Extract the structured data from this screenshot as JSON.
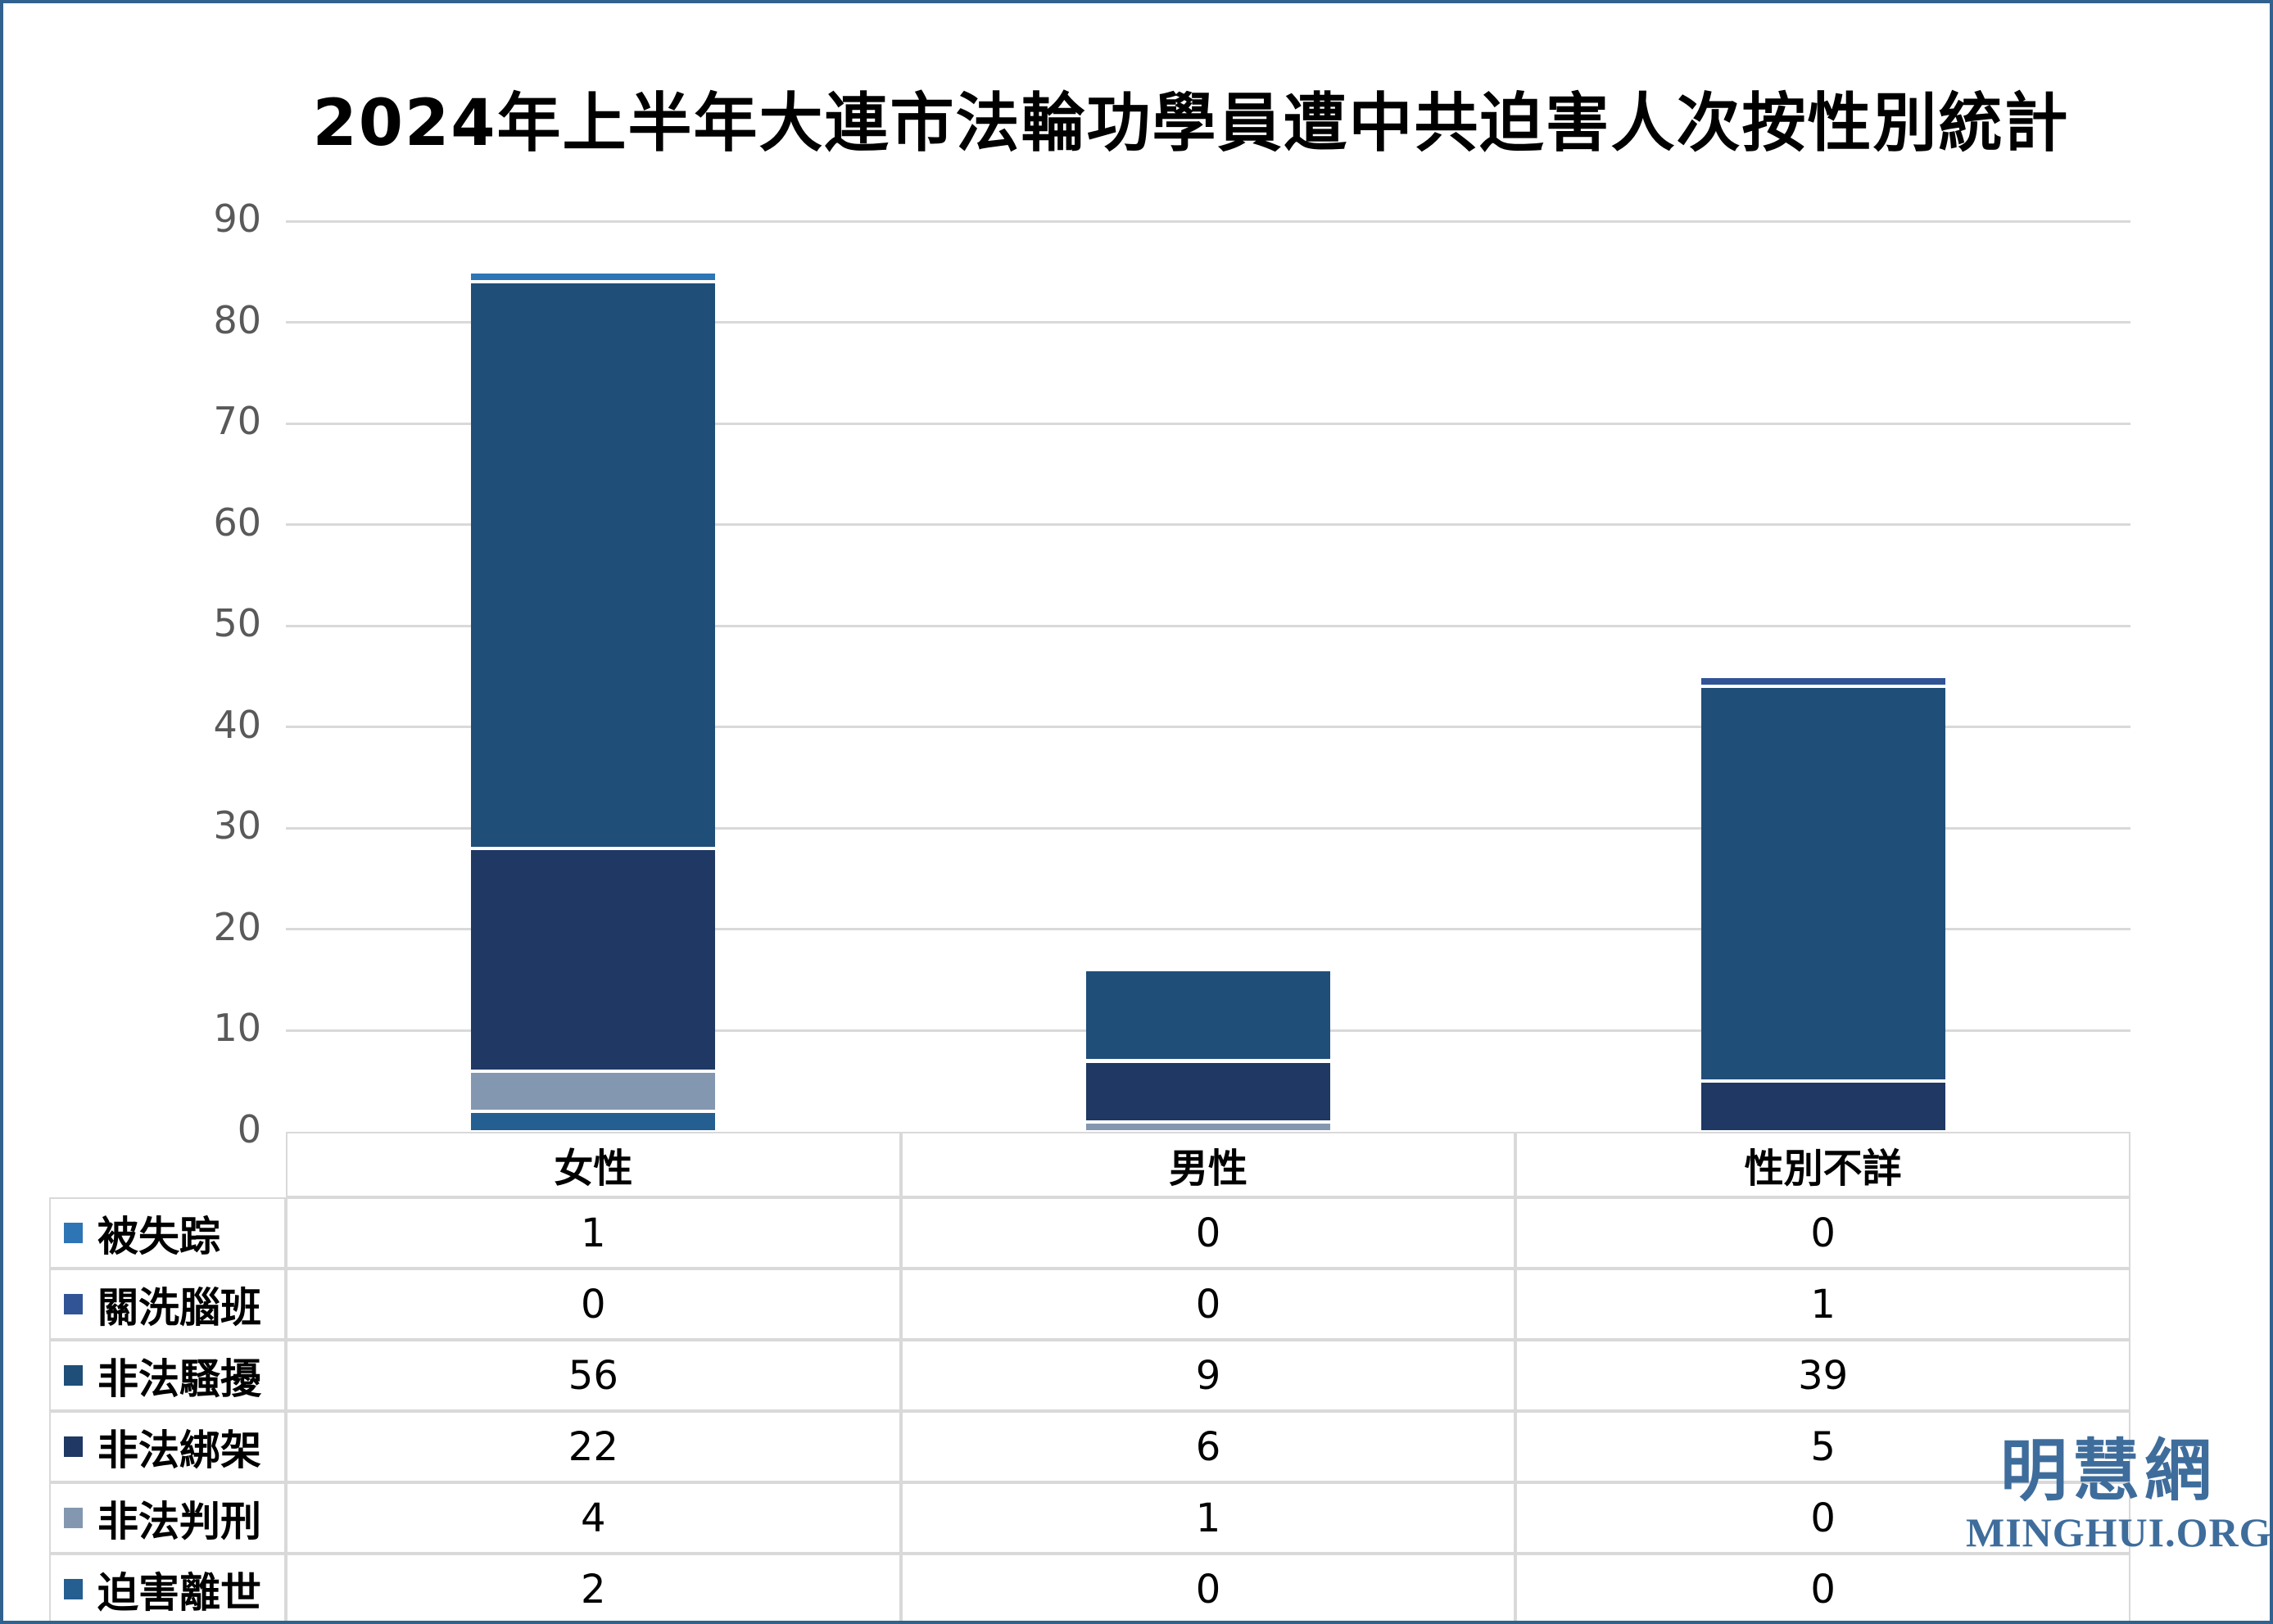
{
  "frame": {
    "border_color": "#31618F",
    "background_color": "#FFFFFF"
  },
  "title": "2024年上半年大連市法輪功學員遭中共迫害人次按性別統計",
  "chart_data": {
    "type": "bar",
    "subtype": "stacked-column-with-data-table",
    "categories": [
      "女性",
      "男性",
      "性別不詳"
    ],
    "series": [
      {
        "name": "被失踪",
        "color": "#2E75B6",
        "values": [
          1,
          0,
          0
        ]
      },
      {
        "name": "關洗腦班",
        "color": "#305496",
        "values": [
          0,
          0,
          1
        ]
      },
      {
        "name": "非法騷擾",
        "color": "#1F4E79",
        "values": [
          56,
          9,
          39
        ]
      },
      {
        "name": "非法綁架",
        "color": "#1F3864",
        "values": [
          22,
          6,
          5
        ]
      },
      {
        "name": "非法判刑",
        "color": "#8497B0",
        "values": [
          4,
          1,
          0
        ]
      },
      {
        "name": "迫害離世",
        "color": "#255E91",
        "values": [
          2,
          0,
          0
        ]
      }
    ],
    "stack_order_bottom_to_top": [
      "迫害離世",
      "非法判刑",
      "非法綁架",
      "非法騷擾",
      "關洗腦班",
      "被失踪"
    ],
    "category_totals": [
      85,
      16,
      45
    ],
    "ylim": [
      0,
      90
    ],
    "yticks": [
      0,
      10,
      20,
      30,
      40,
      50,
      60,
      70,
      80,
      90
    ],
    "grid": true,
    "gridline_color": "#D9D9D9",
    "axis_label_color": "#595959",
    "table_border_color": "#D9D9D9",
    "legend_position": "data-table-left-column"
  },
  "logo": {
    "cjk": "明慧網",
    "latin": "MINGHUI.ORG",
    "color": "#3E6D9C"
  }
}
